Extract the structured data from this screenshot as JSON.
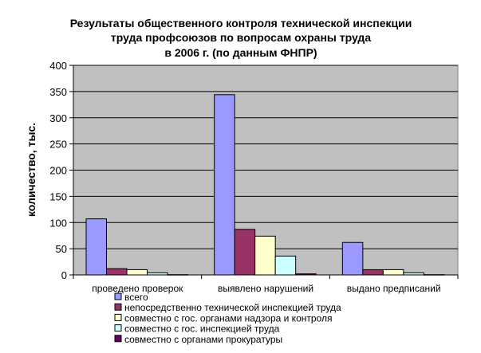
{
  "chart_data": {
    "type": "bar",
    "title_lines": [
      "Результаты общественного контроля технической инспекции",
      "труда профсоюзов по вопросам охраны труда",
      "в 2006 г. (по данным ФНПР)"
    ],
    "ylabel": "количество, тыс.",
    "ylim": [
      0,
      400
    ],
    "yticks": [
      0,
      50,
      100,
      150,
      200,
      250,
      300,
      350,
      400
    ],
    "grid": true,
    "legend_position": "bottom",
    "plot_background": "#c0c0c0",
    "categories": [
      "проведено проверок",
      "выявлено нарушений",
      "выдано предписаний"
    ],
    "series": [
      {
        "name": "всего",
        "color": "#9999ff",
        "values": [
          107,
          344,
          62
        ]
      },
      {
        "name": "непосредственно технической инспекцией труда",
        "color": "#993366",
        "values": [
          12,
          87,
          10
        ]
      },
      {
        "name": "совместно с гос. органами надзора и контроля",
        "color": "#ffffcc",
        "values": [
          10,
          74,
          10
        ]
      },
      {
        "name": "совместно с гос. инспекцией труда",
        "color": "#ccffff",
        "values": [
          4,
          36,
          4
        ]
      },
      {
        "name": "совместно с органами прокуратуры",
        "color": "#660066",
        "values": [
          0.5,
          2,
          0.5
        ]
      }
    ]
  }
}
